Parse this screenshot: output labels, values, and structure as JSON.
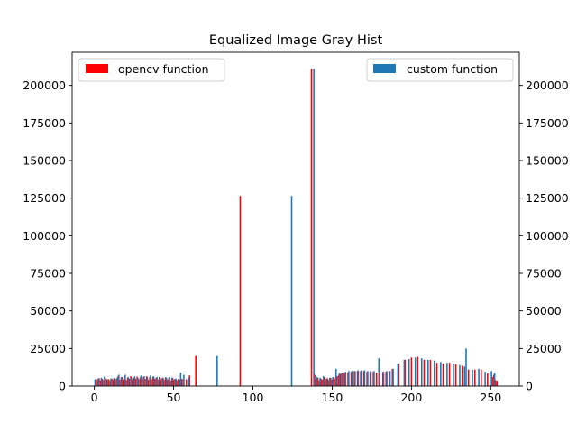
{
  "chart_data": {
    "type": "bar",
    "title": "Equalized Image Gray Hist",
    "xlabel": "",
    "ylabel": "",
    "xlim": [
      -14,
      268
    ],
    "ylim": [
      0,
      222000
    ],
    "xticks": [
      0,
      50,
      100,
      150,
      200,
      250
    ],
    "yticks": [
      0,
      25000,
      50000,
      75000,
      100000,
      125000,
      150000,
      175000,
      200000
    ],
    "grid": false,
    "secondary_y_axis": true,
    "legends": [
      {
        "entry": "opencv function",
        "color": "#ff0000",
        "placement": "upper-left"
      },
      {
        "entry": "custom function",
        "color": "#1f77b4",
        "placement": "upper-right"
      }
    ],
    "series": [
      {
        "name": "opencv function",
        "color": "#ff0000",
        "points": [
          [
            1,
            4500
          ],
          [
            2,
            4200
          ],
          [
            3,
            5200
          ],
          [
            4,
            3800
          ],
          [
            5,
            4800
          ],
          [
            6,
            4000
          ],
          [
            7,
            5200
          ],
          [
            8,
            4400
          ],
          [
            9,
            4600
          ],
          [
            10,
            3800
          ],
          [
            11,
            5000
          ],
          [
            12,
            4200
          ],
          [
            13,
            5200
          ],
          [
            14,
            4500
          ],
          [
            15,
            6500
          ],
          [
            16,
            4200
          ],
          [
            17,
            5800
          ],
          [
            18,
            4400
          ],
          [
            19,
            6500
          ],
          [
            20,
            4000
          ],
          [
            21,
            5500
          ],
          [
            22,
            4800
          ],
          [
            23,
            6500
          ],
          [
            24,
            4200
          ],
          [
            25,
            5500
          ],
          [
            26,
            4800
          ],
          [
            27,
            6200
          ],
          [
            28,
            4500
          ],
          [
            29,
            5800
          ],
          [
            30,
            4400
          ],
          [
            31,
            6000
          ],
          [
            32,
            4800
          ],
          [
            33,
            6500
          ],
          [
            34,
            4200
          ],
          [
            35,
            5800
          ],
          [
            36,
            4500
          ],
          [
            37,
            6200
          ],
          [
            38,
            4800
          ],
          [
            39,
            5500
          ],
          [
            40,
            4400
          ],
          [
            41,
            6000
          ],
          [
            42,
            4600
          ],
          [
            43,
            5500
          ],
          [
            44,
            4200
          ],
          [
            45,
            5800
          ],
          [
            46,
            4400
          ],
          [
            47,
            5200
          ],
          [
            48,
            3800
          ],
          [
            49,
            5500
          ],
          [
            50,
            4200
          ],
          [
            51,
            4800
          ],
          [
            52,
            3800
          ],
          [
            53,
            4600
          ],
          [
            54,
            4200
          ],
          [
            55,
            4800
          ],
          [
            56,
            4500
          ],
          [
            58,
            4500
          ],
          [
            60,
            7000
          ],
          [
            64,
            20000
          ],
          [
            92,
            126500
          ],
          [
            137,
            211000
          ],
          [
            139,
            7500
          ],
          [
            140,
            4500
          ],
          [
            141,
            5500
          ],
          [
            142,
            3800
          ],
          [
            143,
            4800
          ],
          [
            144,
            4200
          ],
          [
            145,
            6000
          ],
          [
            146,
            4400
          ],
          [
            147,
            5200
          ],
          [
            148,
            4000
          ],
          [
            149,
            5500
          ],
          [
            150,
            4500
          ],
          [
            151,
            6000
          ],
          [
            152,
            5000
          ],
          [
            153,
            6500
          ],
          [
            154,
            7000
          ],
          [
            155,
            8000
          ],
          [
            156,
            8500
          ],
          [
            157,
            9000
          ],
          [
            158,
            8500
          ],
          [
            160,
            9000
          ],
          [
            162,
            9500
          ],
          [
            164,
            10000
          ],
          [
            166,
            10000
          ],
          [
            168,
            10000
          ],
          [
            170,
            10000
          ],
          [
            172,
            9500
          ],
          [
            174,
            9500
          ],
          [
            176,
            9500
          ],
          [
            178,
            9000
          ],
          [
            180,
            9000
          ],
          [
            182,
            9500
          ],
          [
            184,
            9500
          ],
          [
            186,
            10000
          ],
          [
            188,
            11500
          ],
          [
            192,
            15000
          ],
          [
            196,
            17500
          ],
          [
            200,
            19000
          ],
          [
            204,
            19500
          ],
          [
            208,
            17500
          ],
          [
            212,
            17500
          ],
          [
            216,
            15500
          ],
          [
            220,
            15000
          ],
          [
            224,
            15500
          ],
          [
            228,
            14500
          ],
          [
            232,
            13500
          ],
          [
            236,
            11000
          ],
          [
            240,
            11000
          ],
          [
            244,
            11000
          ],
          [
            248,
            8500
          ],
          [
            251,
            6000
          ],
          [
            252,
            7500
          ],
          [
            253,
            4000
          ],
          [
            254,
            3500
          ]
        ]
      },
      {
        "name": "custom function",
        "color": "#1f77b4",
        "points": [
          [
            0,
            4500
          ],
          [
            2,
            5000
          ],
          [
            4,
            5500
          ],
          [
            6,
            6500
          ],
          [
            8,
            4500
          ],
          [
            10,
            5000
          ],
          [
            12,
            5500
          ],
          [
            14,
            5500
          ],
          [
            15,
            7500
          ],
          [
            17,
            6000
          ],
          [
            19,
            7500
          ],
          [
            21,
            6000
          ],
          [
            23,
            5500
          ],
          [
            25,
            6500
          ],
          [
            27,
            5500
          ],
          [
            29,
            7000
          ],
          [
            31,
            6500
          ],
          [
            33,
            6000
          ],
          [
            35,
            7000
          ],
          [
            37,
            6500
          ],
          [
            39,
            6000
          ],
          [
            41,
            5500
          ],
          [
            43,
            5500
          ],
          [
            45,
            5500
          ],
          [
            47,
            6000
          ],
          [
            49,
            5500
          ],
          [
            51,
            5000
          ],
          [
            53,
            4500
          ],
          [
            54,
            9000
          ],
          [
            56,
            7500
          ],
          [
            59,
            5500
          ],
          [
            77,
            20000
          ],
          [
            124,
            126500
          ],
          [
            138,
            211000
          ],
          [
            140,
            6000
          ],
          [
            142,
            5500
          ],
          [
            144,
            6500
          ],
          [
            146,
            5000
          ],
          [
            148,
            5500
          ],
          [
            150,
            6000
          ],
          [
            152,
            11500
          ],
          [
            154,
            8500
          ],
          [
            156,
            9000
          ],
          [
            158,
            9500
          ],
          [
            160,
            10000
          ],
          [
            162,
            10000
          ],
          [
            164,
            10000
          ],
          [
            166,
            10500
          ],
          [
            168,
            10500
          ],
          [
            170,
            10500
          ],
          [
            172,
            10000
          ],
          [
            174,
            10000
          ],
          [
            176,
            10000
          ],
          [
            179,
            18500
          ],
          [
            182,
            9500
          ],
          [
            184,
            10000
          ],
          [
            186,
            10000
          ],
          [
            188,
            11500
          ],
          [
            191,
            15000
          ],
          [
            195,
            17500
          ],
          [
            198,
            18000
          ],
          [
            202,
            19000
          ],
          [
            206,
            18500
          ],
          [
            210,
            17500
          ],
          [
            214,
            17000
          ],
          [
            218,
            16000
          ],
          [
            222,
            15500
          ],
          [
            226,
            15000
          ],
          [
            230,
            14000
          ],
          [
            233,
            13000
          ],
          [
            234,
            25000
          ],
          [
            238,
            11000
          ],
          [
            242,
            11500
          ],
          [
            246,
            9500
          ],
          [
            250,
            10000
          ],
          [
            252,
            8500
          ]
        ]
      }
    ]
  }
}
